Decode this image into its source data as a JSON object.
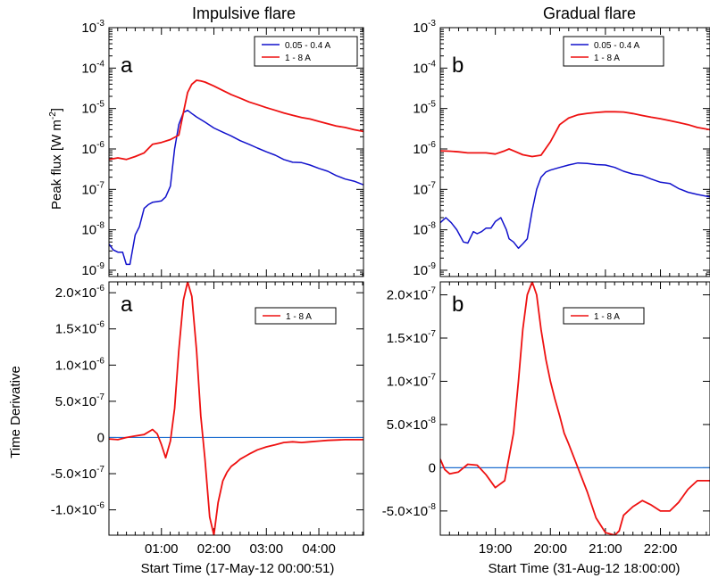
{
  "colors": {
    "short": "#1111cc",
    "long": "#ee1111",
    "zero": "#1f6fd0"
  },
  "chart_data": [
    {
      "id": "impulsive-flux",
      "type": "line",
      "title": "Impulsive flare",
      "panel_label": "a",
      "ylabel_main": "Peak flux [W m",
      "ylabel_sup": "-2",
      "ylabel_end": "]",
      "yscale": "log",
      "ylim": [
        7e-10,
        0.001
      ],
      "xlim": [
        0,
        4.85
      ],
      "y_ticks": [
        {
          "base": "10",
          "exp": "-3",
          "value": 0.001
        },
        {
          "base": "10",
          "exp": "-4",
          "value": 0.0001
        },
        {
          "base": "10",
          "exp": "-5",
          "value": 1e-05
        },
        {
          "base": "10",
          "exp": "-6",
          "value": 1e-06
        },
        {
          "base": "10",
          "exp": "-7",
          "value": 1e-07
        },
        {
          "base": "10",
          "exp": "-8",
          "value": 1e-08
        },
        {
          "base": "10",
          "exp": "-9",
          "value": 1e-09
        }
      ],
      "legend": [
        "0.05 - 0.4 A",
        "1 - 8 A"
      ],
      "series": [
        {
          "name": "0.05 - 0.4 A",
          "color": "short",
          "x": [
            0.0,
            0.08,
            0.17,
            0.26,
            0.33,
            0.4,
            0.5,
            0.58,
            0.67,
            0.75,
            0.83,
            0.92,
            1.0,
            1.08,
            1.17,
            1.25,
            1.33,
            1.42,
            1.5,
            1.58,
            1.67,
            1.83,
            2.0,
            2.17,
            2.33,
            2.5,
            2.67,
            2.83,
            3.0,
            3.17,
            3.33,
            3.5,
            3.67,
            3.83,
            4.0,
            4.17,
            4.33,
            4.5,
            4.67,
            4.85
          ],
          "y": [
            4.5e-09,
            3.2e-09,
            2.8e-09,
            2.8e-09,
            1.4e-09,
            1.4e-09,
            7.5e-09,
            1.2e-08,
            3.4e-08,
            4.2e-08,
            4.8e-08,
            5e-08,
            5.2e-08,
            6.5e-08,
            1.2e-07,
            1e-06,
            4e-06,
            8e-06,
            9e-06,
            7.5e-06,
            6.2e-06,
            4.6e-06,
            3.3e-06,
            2.6e-06,
            2.1e-06,
            1.6e-06,
            1.3e-06,
            1.05e-06,
            8.5e-07,
            7e-07,
            5.5e-07,
            4.7e-07,
            4.6e-07,
            4e-07,
            3.3e-07,
            2.8e-07,
            2.2e-07,
            1.8e-07,
            1.6e-07,
            1.3e-07
          ]
        },
        {
          "name": "1 - 8 A",
          "color": "long",
          "x": [
            0.0,
            0.17,
            0.33,
            0.5,
            0.67,
            0.83,
            1.0,
            1.17,
            1.33,
            1.42,
            1.5,
            1.58,
            1.67,
            1.75,
            1.83,
            2.0,
            2.17,
            2.33,
            2.5,
            2.67,
            2.83,
            3.0,
            3.17,
            3.33,
            3.5,
            3.67,
            3.83,
            4.0,
            4.17,
            4.33,
            4.5,
            4.67,
            4.85
          ],
          "y": [
            5.5e-07,
            6e-07,
            5.5e-07,
            6.5e-07,
            8e-07,
            1.3e-06,
            1.45e-06,
            1.7e-06,
            2.2e-06,
            8e-06,
            2.5e-05,
            4e-05,
            5e-05,
            4.8e-05,
            4.5e-05,
            3.6e-05,
            2.8e-05,
            2.2e-05,
            1.8e-05,
            1.45e-05,
            1.25e-05,
            1.05e-05,
            9e-06,
            7.8e-06,
            6.8e-06,
            6e-06,
            5.5e-06,
            4.8e-06,
            4.2e-06,
            3.7e-06,
            3.4e-06,
            3e-06,
            2.7e-06
          ]
        }
      ]
    },
    {
      "id": "gradual-flux",
      "type": "line",
      "title": "Gradual flare",
      "panel_label": "b",
      "yscale": "log",
      "ylim": [
        7e-10,
        0.001
      ],
      "xlim": [
        18.0,
        22.9
      ],
      "y_ticks": [
        {
          "base": "10",
          "exp": "-3",
          "value": 0.001
        },
        {
          "base": "10",
          "exp": "-4",
          "value": 0.0001
        },
        {
          "base": "10",
          "exp": "-5",
          "value": 1e-05
        },
        {
          "base": "10",
          "exp": "-6",
          "value": 1e-06
        },
        {
          "base": "10",
          "exp": "-7",
          "value": 1e-07
        },
        {
          "base": "10",
          "exp": "-8",
          "value": 1e-08
        },
        {
          "base": "10",
          "exp": "-9",
          "value": 1e-09
        }
      ],
      "legend": [
        "0.05 - 0.4 A",
        "1 - 8 A"
      ],
      "series": [
        {
          "name": "0.05 - 0.4 A",
          "color": "short",
          "x": [
            18.0,
            18.1,
            18.2,
            18.3,
            18.42,
            18.5,
            18.6,
            18.67,
            18.75,
            18.83,
            18.92,
            19.0,
            19.1,
            19.2,
            19.25,
            19.33,
            19.42,
            19.5,
            19.58,
            19.67,
            19.75,
            19.83,
            19.92,
            20.0,
            20.17,
            20.33,
            20.5,
            20.67,
            20.83,
            21.0,
            21.17,
            21.33,
            21.5,
            21.67,
            21.83,
            22.0,
            22.17,
            22.33,
            22.5,
            22.67,
            22.9
          ],
          "y": [
            1.5e-08,
            2e-08,
            1.5e-08,
            1e-08,
            5e-09,
            4.7e-09,
            9e-09,
            8e-09,
            9e-09,
            1.1e-08,
            1.1e-08,
            1.6e-08,
            2e-08,
            1e-08,
            6e-09,
            5e-09,
            3.5e-09,
            4.5e-09,
            6e-09,
            3e-08,
            1e-07,
            2e-07,
            2.7e-07,
            3e-07,
            3.5e-07,
            4e-07,
            4.5e-07,
            4.4e-07,
            4.1e-07,
            4e-07,
            3.5e-07,
            2.8e-07,
            2.4e-07,
            2.2e-07,
            1.8e-07,
            1.5e-07,
            1.4e-07,
            1.05e-07,
            8.5e-08,
            7.5e-08,
            6.5e-08
          ]
        },
        {
          "name": "1 - 8 A",
          "color": "long",
          "x": [
            18.0,
            18.17,
            18.33,
            18.5,
            18.67,
            18.83,
            19.0,
            19.17,
            19.25,
            19.33,
            19.5,
            19.67,
            19.83,
            20.0,
            20.17,
            20.33,
            20.5,
            20.67,
            20.83,
            21.0,
            21.17,
            21.33,
            21.5,
            21.67,
            21.83,
            22.0,
            22.17,
            22.33,
            22.5,
            22.67,
            22.9
          ],
          "y": [
            9e-07,
            8.8e-07,
            8.5e-07,
            8e-07,
            8e-07,
            8e-07,
            7.5e-07,
            9e-07,
            1e-06,
            9e-07,
            7.2e-07,
            6.5e-07,
            7e-07,
            1.5e-06,
            4e-06,
            5.8e-06,
            7e-06,
            7.6e-06,
            8e-06,
            8.3e-06,
            8.3e-06,
            8.2e-06,
            7.5e-06,
            6.7e-06,
            6.1e-06,
            5.6e-06,
            5e-06,
            4.5e-06,
            4e-06,
            3.4e-06,
            3e-06
          ]
        }
      ]
    },
    {
      "id": "impulsive-deriv",
      "type": "line",
      "panel_label": "a",
      "ylabel": "Time Derivative",
      "xlabel": "Start Time (17-May-12 00:00:51)",
      "ylim": [
        -1.35e-06,
        2.15e-06
      ],
      "xlim": [
        0,
        4.85
      ],
      "x_ticks": [
        {
          "label": "01:00",
          "value": 1
        },
        {
          "label": "02:00",
          "value": 2
        },
        {
          "label": "03:00",
          "value": 3
        },
        {
          "label": "04:00",
          "value": 4
        }
      ],
      "y_ticks": [
        {
          "mant": "2.0",
          "exp": "-6",
          "value": 2e-06
        },
        {
          "mant": "1.5",
          "exp": "-6",
          "value": 1.5e-06
        },
        {
          "mant": "1.0",
          "exp": "-6",
          "value": 1e-06
        },
        {
          "mant": "5.0",
          "exp": "-7",
          "value": 5e-07
        },
        {
          "plain": "0",
          "value": 0
        },
        {
          "mant": "-5.0",
          "exp": "-7",
          "value": -5e-07
        },
        {
          "mant": "-1.0",
          "exp": "-6",
          "value": -1e-06
        }
      ],
      "legend": [
        "1 - 8 A"
      ],
      "series": [
        {
          "name": "1 - 8 A",
          "color": "long",
          "x": [
            0.0,
            0.17,
            0.33,
            0.5,
            0.67,
            0.83,
            0.92,
            1.0,
            1.08,
            1.17,
            1.25,
            1.33,
            1.42,
            1.5,
            1.58,
            1.67,
            1.75,
            1.83,
            1.92,
            2.0,
            2.08,
            2.17,
            2.25,
            2.33,
            2.42,
            2.5,
            2.67,
            2.83,
            3.0,
            3.17,
            3.33,
            3.5,
            3.67,
            3.83,
            4.0,
            4.17,
            4.33,
            4.5,
            4.67,
            4.85
          ],
          "y": [
            -2e-08,
            -3e-08,
            0,
            2e-08,
            4e-08,
            1.1e-07,
            5e-08,
            -1e-07,
            -2.8e-07,
            -5e-08,
            4e-07,
            1.2e-06,
            1.9e-06,
            2.15e-06,
            1.95e-06,
            1.2e-06,
            3e-07,
            -3e-07,
            -1.1e-06,
            -1.35e-06,
            -9e-07,
            -6e-07,
            -4.8e-07,
            -4e-07,
            -3.5e-07,
            -3e-07,
            -2.3e-07,
            -1.7e-07,
            -1.3e-07,
            -1e-07,
            -7e-08,
            -6e-08,
            -7e-08,
            -6e-08,
            -5e-08,
            -4e-08,
            -3.5e-08,
            -3e-08,
            -3e-08,
            -3e-08
          ]
        }
      ]
    },
    {
      "id": "gradual-deriv",
      "type": "line",
      "panel_label": "b",
      "xlabel": "Start Time (31-Aug-12 18:00:00)",
      "ylim": [
        -7.8e-08,
        2.15e-07
      ],
      "xlim": [
        18.0,
        22.9
      ],
      "x_ticks": [
        {
          "label": "19:00",
          "value": 19
        },
        {
          "label": "20:00",
          "value": 20
        },
        {
          "label": "21:00",
          "value": 21
        },
        {
          "label": "22:00",
          "value": 22
        }
      ],
      "y_ticks": [
        {
          "mant": "2.0",
          "exp": "-7",
          "value": 2e-07
        },
        {
          "mant": "1.5",
          "exp": "-7",
          "value": 1.5e-07
        },
        {
          "mant": "1.0",
          "exp": "-7",
          "value": 1e-07
        },
        {
          "mant": "5.0",
          "exp": "-8",
          "value": 5e-08
        },
        {
          "plain": "0",
          "value": 0
        },
        {
          "mant": "-5.0",
          "exp": "-8",
          "value": -5e-08
        }
      ],
      "legend": [
        "1 - 8 A"
      ],
      "series": [
        {
          "name": "1 - 8 A",
          "color": "long",
          "x": [
            18.0,
            18.08,
            18.17,
            18.33,
            18.5,
            18.67,
            18.83,
            19.0,
            19.17,
            19.33,
            19.42,
            19.5,
            19.58,
            19.67,
            19.75,
            19.83,
            19.92,
            20.0,
            20.08,
            20.17,
            20.25,
            20.33,
            20.5,
            20.67,
            20.83,
            21.0,
            21.17,
            21.25,
            21.33,
            21.5,
            21.67,
            21.83,
            22.0,
            22.17,
            22.33,
            22.5,
            22.67,
            22.9
          ],
          "y": [
            1e-08,
            -2e-09,
            -7e-09,
            -5e-09,
            4e-09,
            3e-09,
            -8e-09,
            -2.3e-08,
            -1.5e-08,
            4e-08,
            1e-07,
            1.6e-07,
            2e-07,
            2.15e-07,
            2e-07,
            1.6e-07,
            1.25e-07,
            1e-07,
            8e-08,
            6e-08,
            4e-08,
            2.8e-08,
            0,
            -2.8e-08,
            -5.8e-08,
            -7.5e-08,
            -7.8e-08,
            -7.3e-08,
            -5.5e-08,
            -4.5e-08,
            -3.8e-08,
            -4.3e-08,
            -5e-08,
            -5e-08,
            -4e-08,
            -2.5e-08,
            -1.5e-08,
            -1.5e-08
          ]
        }
      ]
    }
  ]
}
